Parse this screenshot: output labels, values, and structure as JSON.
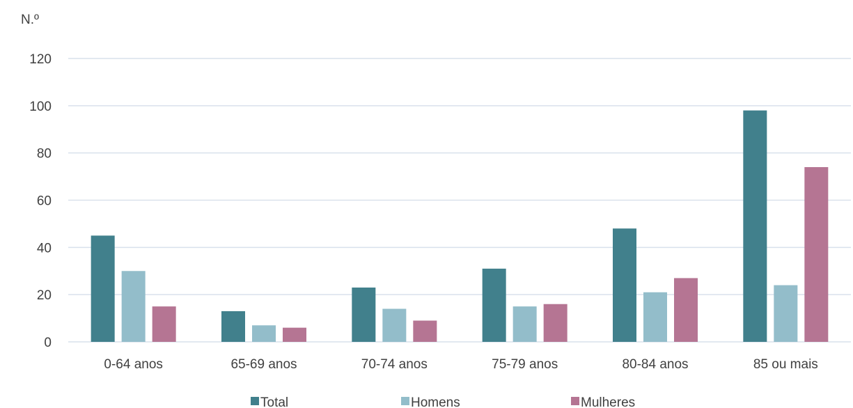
{
  "chart_data": {
    "type": "bar",
    "y_unit_label": "N.º",
    "categories": [
      "0-64 anos",
      "65-69 anos",
      "70-74 anos",
      "75-79 anos",
      "80-84 anos",
      "85 ou mais"
    ],
    "series": [
      {
        "name": "Total",
        "color": "#41808c",
        "values": [
          45,
          13,
          23,
          31,
          48,
          98
        ]
      },
      {
        "name": "Homens",
        "color": "#93bdca",
        "values": [
          30,
          7,
          14,
          15,
          21,
          24
        ]
      },
      {
        "name": "Mulheres",
        "color": "#b57593",
        "values": [
          15,
          6,
          9,
          16,
          27,
          74
        ]
      }
    ],
    "ylim": [
      0,
      120
    ],
    "yticks": [
      0,
      20,
      40,
      60,
      80,
      100,
      120
    ],
    "grid": true,
    "gridline_color": "#d9e1ec",
    "legend_position": "bottom"
  }
}
